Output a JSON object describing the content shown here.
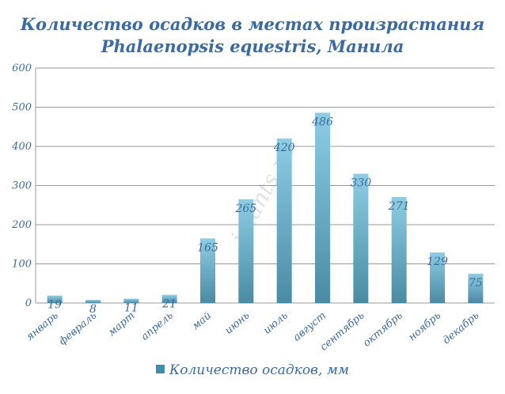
{
  "chart_data": {
    "type": "bar",
    "title_lines": [
      "Количество осадков в местах произрастания",
      "Phalaenopsis equestris, Манила"
    ],
    "categories": [
      "январь",
      "февраль",
      "март",
      "апрель",
      "май",
      "июнь",
      "июль",
      "август",
      "сентябрь",
      "октябрь",
      "ноябрь",
      "декабрь"
    ],
    "series": [
      {
        "name": "Количество осадков, мм",
        "values": [
          19,
          8,
          11,
          21,
          165,
          265,
          420,
          486,
          330,
          271,
          129,
          75
        ]
      }
    ],
    "y_ticks": [
      0,
      100,
      200,
      300,
      400,
      500,
      600
    ],
    "ylim": [
      0,
      600
    ],
    "grid": "horizontal",
    "legend_position": "bottom",
    "watermark": "iplants.ru",
    "colors": {
      "bar_light": "#8ecde3",
      "bar_dark": "#4a8ba4",
      "text": "#3b6aa0",
      "grid": "#9a9a9a"
    }
  }
}
